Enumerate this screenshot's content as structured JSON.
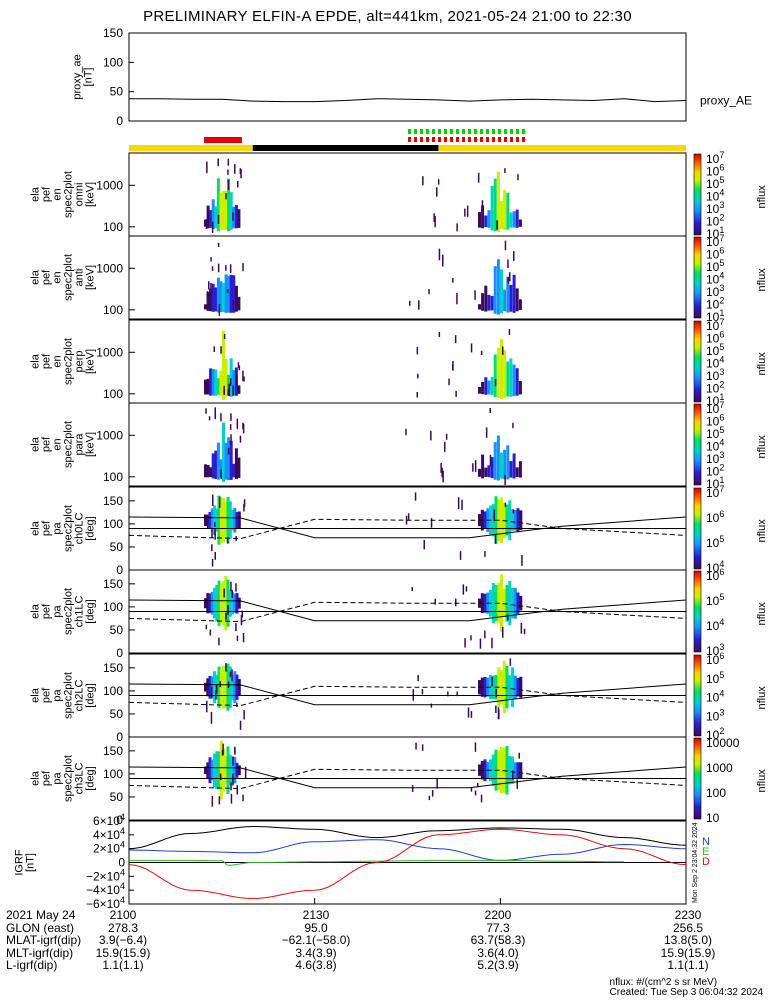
{
  "title": "PRELIMINARY ELFIN-A EPDE, alt=441km, 2021-05-24 21:00 to 22:30",
  "colors": {
    "bar_yellow": "#ffd700",
    "bar_black": "#000000",
    "bar_red": "#e00000",
    "bar_green": "#00d000",
    "ae_line": "#000000",
    "igrf_N": "#1f3fd0",
    "igrf_E": "#2fb82f",
    "igrf_D": "#e01010",
    "igrf_total": "#000000"
  },
  "side_label": "proxy_AE",
  "colorbar_unit": "nflux",
  "igrf_legend": [
    "N",
    "E",
    "D"
  ],
  "timestamp_side": "Mon Sep  2 23:04:32 2024",
  "chart_data": [
    {
      "type": "line",
      "ylabel": "proxy_ae\n[nT]",
      "ylim": [
        0,
        150
      ],
      "yticks": [
        "150",
        "100",
        "50",
        "0"
      ],
      "series": [
        {
          "name": "proxy_AE",
          "x": [
            0,
            5,
            10,
            15,
            20,
            25,
            30,
            35,
            40,
            45,
            50,
            55,
            60,
            65,
            70,
            75,
            80,
            85,
            90
          ],
          "values": [
            38,
            38,
            37,
            37,
            34,
            33,
            33,
            35,
            38,
            37,
            36,
            34,
            36,
            37,
            36,
            35,
            38,
            33,
            35
          ]
        }
      ]
    },
    {
      "type": "heatmap",
      "ylabel": "ela\npef\nen\nspec2plot\nomni\n[keV]",
      "yscale": "log",
      "ylim": [
        60,
        6000
      ],
      "yticks": [
        "1000",
        "100"
      ],
      "colorbar_ticks": [
        "10^7",
        "10^6",
        "10^5",
        "10^4",
        "10^3",
        "10^2",
        "10^1"
      ]
    },
    {
      "type": "heatmap",
      "ylabel": "ela\npef\nen\nspec2plot\nanti\n[keV]",
      "yscale": "log",
      "ylim": [
        60,
        6000
      ],
      "yticks": [
        "1000",
        "100"
      ],
      "colorbar_ticks": [
        "10^7",
        "10^6",
        "10^5",
        "10^4",
        "10^3",
        "10^2",
        "10^1"
      ]
    },
    {
      "type": "heatmap",
      "ylabel": "ela\npef\nen\nspec2plot\nperp\n[keV]",
      "yscale": "log",
      "ylim": [
        60,
        6000
      ],
      "yticks": [
        "1000",
        "100"
      ],
      "colorbar_ticks": [
        "10^7",
        "10^6",
        "10^5",
        "10^4",
        "10^3",
        "10^2",
        "10^1"
      ]
    },
    {
      "type": "heatmap",
      "ylabel": "ela\npef\nen\nspec2plot\npara\n[keV]",
      "yscale": "log",
      "ylim": [
        60,
        6000
      ],
      "yticks": [
        "1000",
        "100"
      ],
      "colorbar_ticks": [
        "10^7",
        "10^6",
        "10^5",
        "10^4",
        "10^3",
        "10^2",
        "10^1"
      ]
    },
    {
      "type": "heatmap",
      "ylabel": "ela\npef\npa\nspec2plot\nch0LC\n[deg]",
      "ylim": [
        0,
        180
      ],
      "yticks": [
        "150",
        "100",
        "50",
        "0"
      ],
      "colorbar_ticks": [
        "10^7",
        "10^6",
        "10^5",
        "10^4"
      ]
    },
    {
      "type": "heatmap",
      "ylabel": "ela\npef\npa\nspec2plot\nch1LC\n[deg]",
      "ylim": [
        0,
        180
      ],
      "yticks": [
        "150",
        "100",
        "50",
        "0"
      ],
      "colorbar_ticks": [
        "10^6",
        "10^5",
        "10^4",
        "10^3"
      ]
    },
    {
      "type": "heatmap",
      "ylabel": "ela\npef\npa\nspec2plot\nch2LC\n[deg]",
      "ylim": [
        0,
        180
      ],
      "yticks": [
        "150",
        "100",
        "50",
        "0"
      ],
      "colorbar_ticks": [
        "10^6",
        "10^5",
        "10^4",
        "10^3",
        "10^2"
      ]
    },
    {
      "type": "heatmap",
      "ylabel": "ela\npef\npa\nspec2plot\nch3LC\n[deg]",
      "ylim": [
        0,
        180
      ],
      "yticks": [
        "150",
        "100",
        "50",
        "0"
      ],
      "colorbar_ticks": [
        "10000",
        "1000",
        "100",
        "10"
      ]
    },
    {
      "type": "line",
      "ylabel": "IGRF\n[nT]",
      "ylim": [
        -60000,
        60000
      ],
      "yticks": [
        "6×10^4",
        "4×10^4",
        "2×10^4",
        "0",
        "−2×10^4",
        "−4×10^4",
        "−6×10^4"
      ],
      "series": [
        {
          "name": "N",
          "x": [
            0,
            10,
            20,
            30,
            40,
            50,
            60,
            70,
            80,
            90
          ],
          "values": [
            18000,
            16000,
            14000,
            30000,
            33000,
            20000,
            3000,
            12000,
            26000,
            20000
          ]
        },
        {
          "name": "E",
          "x": [
            0,
            10,
            15,
            16,
            20,
            30,
            40,
            50,
            60,
            70,
            80
          ],
          "values": [
            3000,
            3000,
            2500,
            -4000,
            0,
            1000,
            2000,
            3000,
            3000,
            2000,
            1000
          ]
        },
        {
          "name": "D",
          "x": [
            0,
            10,
            20,
            30,
            40,
            50,
            60,
            70,
            80,
            90
          ],
          "values": [
            -3000,
            -40000,
            -52000,
            -40000,
            0,
            40000,
            48000,
            40000,
            20000,
            -3000
          ]
        },
        {
          "name": "",
          "x": [
            0,
            10,
            20,
            30,
            40,
            50,
            60,
            70,
            80,
            90
          ],
          "values": [
            20000,
            42000,
            52000,
            48000,
            36000,
            46000,
            50000,
            48000,
            36000,
            25000
          ]
        }
      ]
    }
  ],
  "time_axis": {
    "ticks": [
      "2100",
      "2130",
      "2200",
      "2230"
    ],
    "rows": [
      {
        "label": "2021 May 24",
        "values": [
          "2100",
          "2130",
          "2200",
          "2230"
        ]
      },
      {
        "label": "GLON (east)",
        "values": [
          "278.3",
          "95.0",
          "77.3",
          "256.5"
        ]
      },
      {
        "label": "MLAT-igrf(dip)",
        "values": [
          "3.9(−6.4)",
          "−62.1(−58.0)",
          "63.7(58.3)",
          "13.8(5.0)"
        ]
      },
      {
        "label": "MLT-igrf(dip)",
        "values": [
          "15.9(15.9)",
          "3.4(3.9)",
          "3.6(4.0)",
          "15.9(15.9)"
        ]
      },
      {
        "label": "L-igrf(dip)",
        "values": [
          "1.1(1.1)",
          "4.6(3.8)",
          "5.2(3.9)",
          "1.1(1.1)"
        ]
      }
    ]
  },
  "credit": {
    "line1": "nflux: #/(cm^2 s sr MeV)",
    "line2": "Created: Tue Sep  3 06:04:32 2024"
  }
}
